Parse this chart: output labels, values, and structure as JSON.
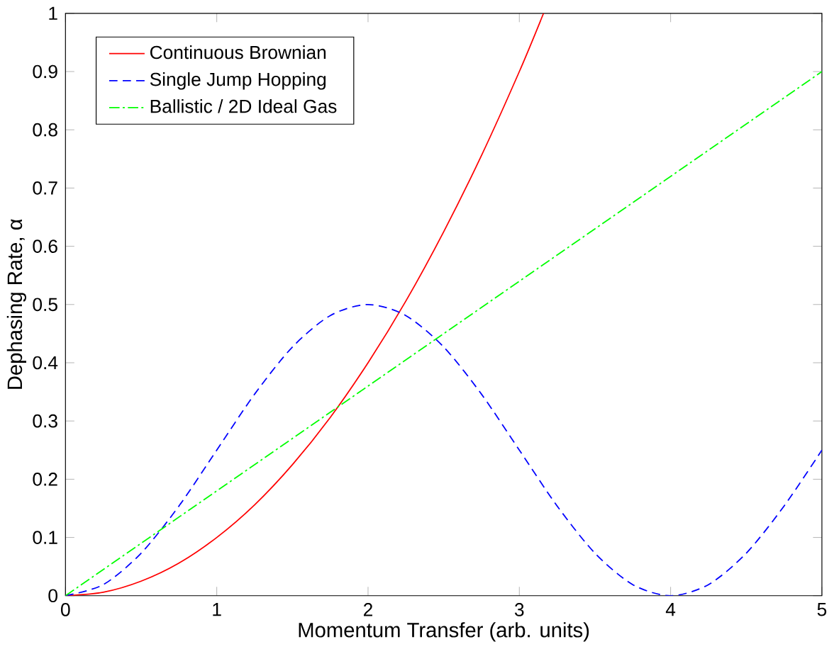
{
  "chart_data": {
    "type": "line",
    "xlabel": "Momentum Transfer (arb. units)",
    "ylabel": "Dephasing Rate, α",
    "xlim": [
      0,
      5
    ],
    "ylim": [
      0,
      1
    ],
    "xticks": [
      0,
      1,
      2,
      3,
      4,
      5
    ],
    "yticks": [
      0,
      0.1,
      0.2,
      0.3,
      0.4,
      0.5,
      0.6,
      0.7,
      0.8,
      0.9,
      1
    ],
    "legend": "top left",
    "grid": false,
    "marker": "none",
    "series": [
      {
        "name": "Continuous Brownian",
        "color": "#ff0000",
        "line_style": "solid",
        "x": [
          0,
          0.25,
          0.5,
          0.75,
          1,
          1.25,
          1.5,
          1.75,
          2,
          2.25,
          2.5,
          2.75,
          3,
          3.16
        ],
        "values": [
          0,
          0.006,
          0.025,
          0.056,
          0.1,
          0.156,
          0.225,
          0.306,
          0.4,
          0.506,
          0.625,
          0.756,
          0.9,
          1.0
        ]
      },
      {
        "name": "Single Jump Hopping",
        "color": "#0000ff",
        "line_style": "dashed",
        "x": [
          0,
          0.25,
          0.5,
          0.75,
          1,
          1.25,
          1.5,
          1.75,
          2,
          2.25,
          2.5,
          2.75,
          3,
          3.25,
          3.5,
          3.75,
          4,
          4.25,
          4.5,
          4.75,
          5
        ],
        "values": [
          0,
          0.019,
          0.073,
          0.154,
          0.25,
          0.346,
          0.427,
          0.481,
          0.5,
          0.481,
          0.427,
          0.346,
          0.25,
          0.154,
          0.073,
          0.019,
          0,
          0.019,
          0.073,
          0.154,
          0.25
        ]
      },
      {
        "name": "Ballistic / 2D Ideal Gas",
        "color": "#00ff00",
        "line_style": "dashdot",
        "x": [
          0,
          2.5,
          5
        ],
        "values": [
          0,
          0.45,
          0.9
        ]
      }
    ]
  }
}
